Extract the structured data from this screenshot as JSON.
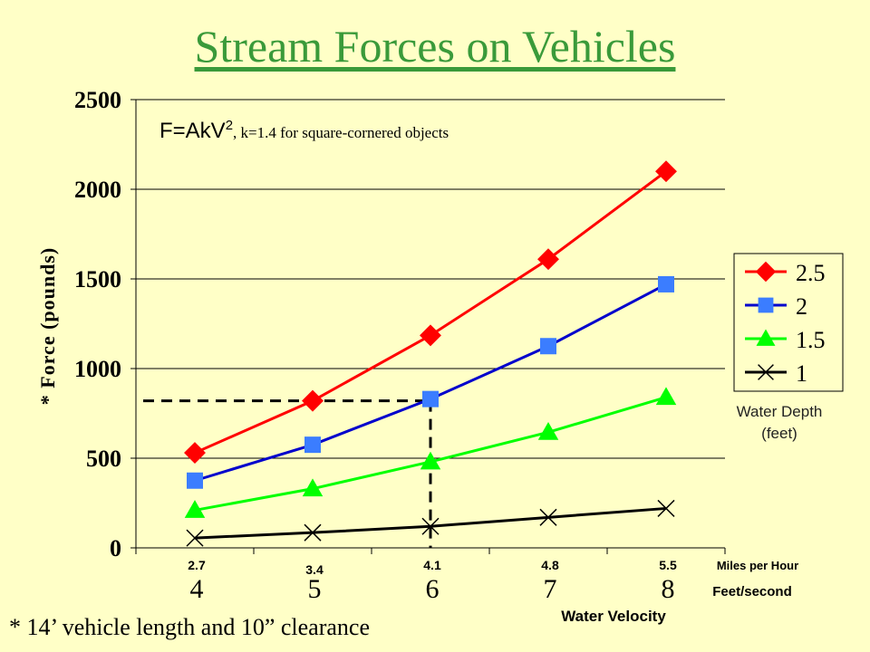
{
  "title": "Stream Forces on Vehicles",
  "formula": {
    "main": "F=AkV",
    "exponent": "2",
    "note": ", k=1.4 for square-cornered objects"
  },
  "footnote": "* 14’ vehicle length and 10” clearance",
  "legend_caption": {
    "line1": "Water Depth",
    "line2": "(feet)"
  },
  "chart_data": {
    "type": "line",
    "ylabel": "* Force (pounds)",
    "xlabel": "Water Velocity",
    "x_unit_primary": "Feet/second",
    "x_unit_secondary": "Miles per Hour",
    "categories": [
      "4",
      "5",
      "6",
      "7",
      "8"
    ],
    "mph_labels": [
      "2.7",
      "3.4",
      "4.1",
      "4.8",
      "5.5"
    ],
    "y_ticks": [
      "0",
      "500",
      "1000",
      "1500",
      "2000",
      "2500"
    ],
    "ylim": [
      0,
      2500
    ],
    "grid": "horizontal",
    "legend_position": "right",
    "series": [
      {
        "name": "2.5",
        "color": "#ff0000",
        "marker": "diamond",
        "values": [
          530,
          820,
          1185,
          1610,
          2100
        ]
      },
      {
        "name": "2",
        "color": "#0000cc",
        "marker_color": "#3b7dff",
        "marker": "square",
        "values": [
          375,
          575,
          830,
          1125,
          1470
        ]
      },
      {
        "name": "1.5",
        "color": "#00ff00",
        "marker": "triangle",
        "values": [
          210,
          330,
          480,
          645,
          840
        ]
      },
      {
        "name": "1",
        "color": "#000000",
        "marker": "x",
        "values": [
          55,
          85,
          120,
          170,
          220
        ]
      }
    ],
    "reference_point": {
      "x": "6",
      "y": 820
    }
  }
}
